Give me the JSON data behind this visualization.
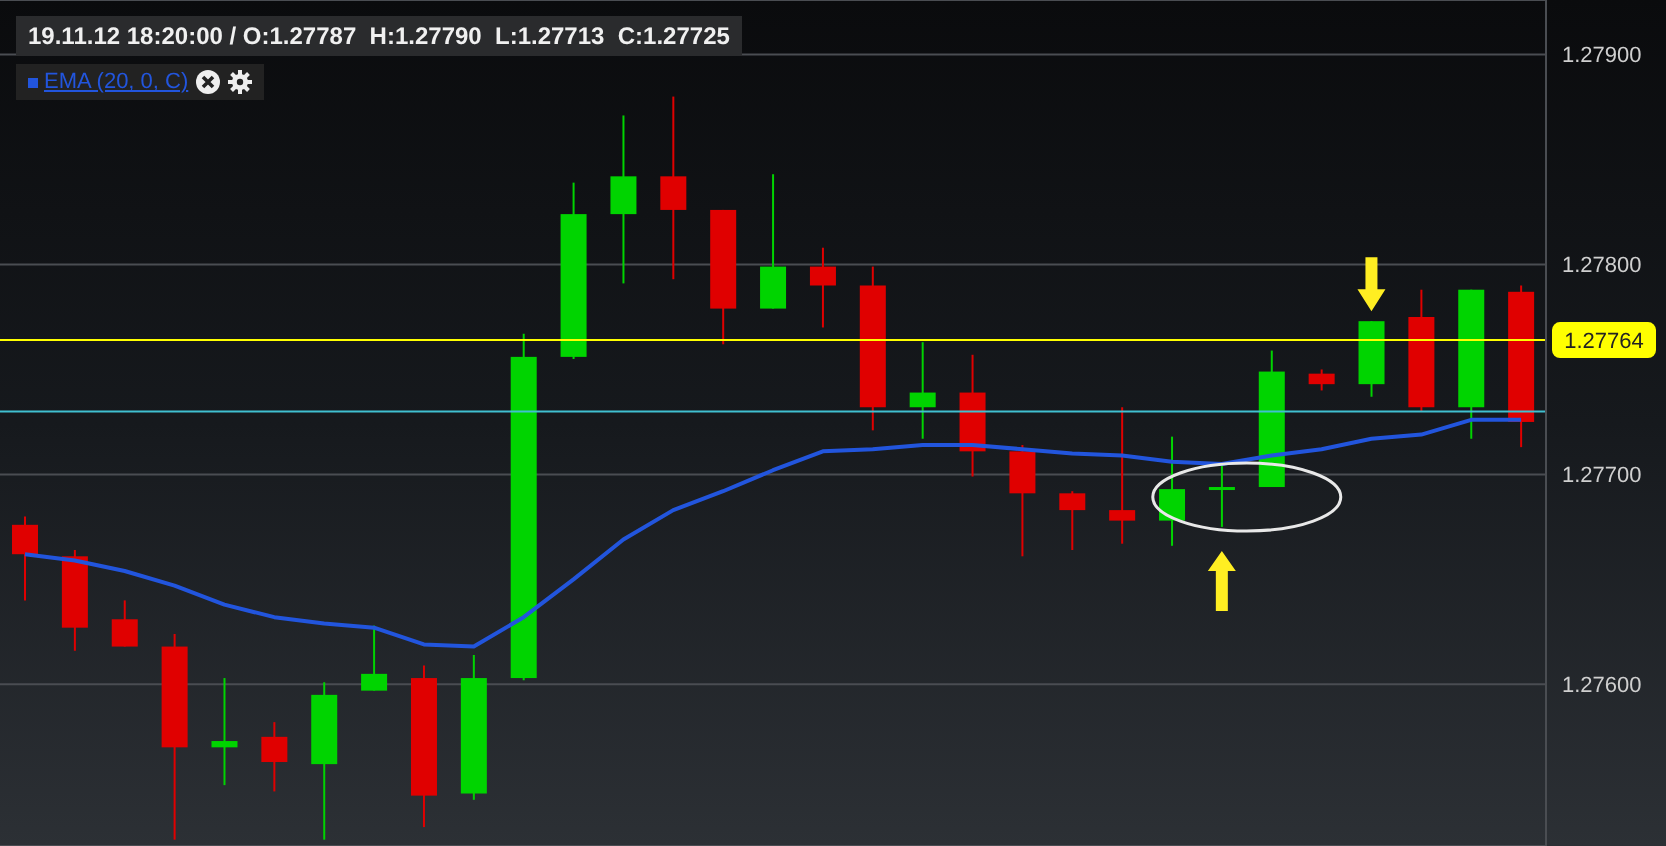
{
  "chart_data": {
    "type": "candlestick",
    "title": "19.11.12 18:20:00 / O:1.27787  H:1.27790  L:1.27713  C:1.27725",
    "categories": [
      null,
      null,
      null,
      null,
      null,
      null,
      null,
      null,
      null,
      null,
      null,
      null,
      null,
      null,
      null,
      null,
      null,
      null,
      null,
      null,
      null,
      null,
      null,
      null,
      null,
      null,
      null,
      null,
      null,
      null,
      null
    ],
    "ohlc": [
      [
        1.27676,
        1.2768,
        1.2764,
        1.27662
      ],
      [
        1.27661,
        1.27664,
        1.27616,
        1.27627
      ],
      [
        1.27631,
        1.2764,
        1.27618,
        1.27618
      ],
      [
        1.27618,
        1.27624,
        1.27526,
        1.2757
      ],
      [
        1.2757,
        1.27603,
        1.27552,
        1.27573
      ],
      [
        1.27575,
        1.27582,
        1.27549,
        1.27563
      ],
      [
        1.27562,
        1.27601,
        1.27526,
        1.27595
      ],
      [
        1.27597,
        1.27628,
        1.27597,
        1.27605
      ],
      [
        1.27603,
        1.27609,
        1.27532,
        1.27547
      ],
      [
        1.27548,
        1.27614,
        1.27545,
        1.27603
      ],
      [
        1.27603,
        1.27767,
        1.27602,
        1.27756
      ],
      [
        1.27756,
        1.27839,
        1.27755,
        1.27824
      ],
      [
        1.27824,
        1.27871,
        1.27791,
        1.27842
      ],
      [
        1.27842,
        1.2788,
        1.27793,
        1.27826
      ],
      [
        1.27826,
        1.27826,
        1.27762,
        1.27779
      ],
      [
        1.27779,
        1.27843,
        1.27779,
        1.27799
      ],
      [
        1.27799,
        1.27808,
        1.2777,
        1.2779
      ],
      [
        1.2779,
        1.27799,
        1.27721,
        1.27732
      ],
      [
        1.27732,
        1.27763,
        1.27717,
        1.27739
      ],
      [
        1.27739,
        1.27757,
        1.27699,
        1.27711
      ],
      [
        1.27711,
        1.27714,
        1.27661,
        1.27691
      ],
      [
        1.27691,
        1.27692,
        1.27664,
        1.27683
      ],
      [
        1.27683,
        1.27732,
        1.27667,
        1.27678
      ],
      [
        1.27678,
        1.27718,
        1.27666,
        1.27693
      ],
      [
        1.27693,
        1.27704,
        1.27675,
        1.27694
      ],
      [
        1.27694,
        1.27759,
        1.27694,
        1.27749
      ],
      [
        1.27748,
        1.2775,
        1.2774,
        1.27743
      ],
      [
        1.27743,
        1.27773,
        1.27737,
        1.27773
      ],
      [
        1.27775,
        1.27788,
        1.2773,
        1.27732
      ],
      [
        1.27732,
        1.27788,
        1.27717,
        1.27788
      ],
      [
        1.27787,
        1.2779,
        1.27713,
        1.27725
      ]
    ],
    "colors": [
      "#e00000",
      "#e00000",
      "#e00000",
      "#e00000",
      "#00d400",
      "#e00000",
      "#00d400",
      "#00d400",
      "#e00000",
      "#00d400",
      "#00d400",
      "#00d400",
      "#00d400",
      "#e00000",
      "#e00000",
      "#00d400",
      "#e00000",
      "#e00000",
      "#00d400",
      "#e00000",
      "#e00000",
      "#e00000",
      "#e00000",
      "#00d400",
      "#00d400",
      "#00d400",
      "#e00000",
      "#00d400",
      "#e00000",
      "#00d400",
      "#e00000"
    ],
    "series": [
      {
        "name": "EMA (20, 0, C)",
        "type": "line",
        "color": "#2255dd",
        "values": [
          1.27662,
          1.27659,
          1.27654,
          1.27647,
          1.27638,
          1.27632,
          1.27629,
          1.27627,
          1.27619,
          1.27618,
          1.27632,
          1.2765,
          1.27669,
          1.27683,
          1.27692,
          1.27702,
          1.27711,
          1.27712,
          1.27714,
          1.27714,
          1.27712,
          1.2771,
          1.27709,
          1.27706,
          1.27705,
          1.27709,
          1.27712,
          1.27717,
          1.27719,
          1.27726,
          1.27726
        ]
      }
    ],
    "ylim": [
      1.27523,
      1.27926
    ],
    "yticks": [
      {
        "value": 1.276,
        "label": "1.27600"
      },
      {
        "value": 1.277,
        "label": "1.27700"
      },
      {
        "value": 1.278,
        "label": "1.27800"
      },
      {
        "value": 1.279,
        "label": "1.27900"
      }
    ],
    "ref_lines": [
      {
        "axis": "y",
        "value": 1.27764,
        "label": "1.27764",
        "color": "#ffff00"
      },
      {
        "axis": "y",
        "value": 1.2773,
        "color": "#40c0d0"
      }
    ],
    "grid": "y",
    "legend": "top left",
    "tick_labels": "y"
  }
}
